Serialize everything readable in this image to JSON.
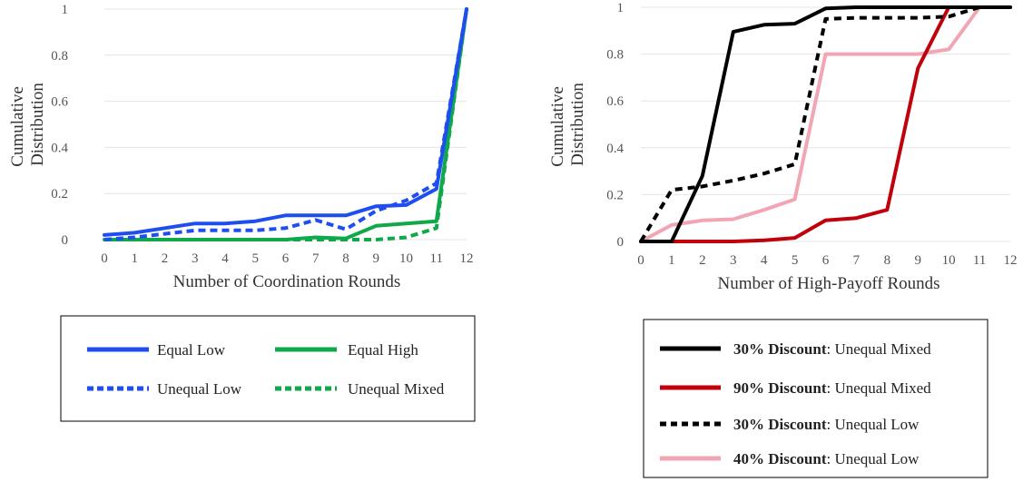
{
  "chart_data": [
    {
      "type": "line",
      "xlabel": "Number of Coordination Rounds",
      "ylabel": "Cumulative Distribution",
      "x": [
        0,
        1,
        2,
        3,
        4,
        5,
        6,
        7,
        8,
        9,
        10,
        11,
        12
      ],
      "xlim": [
        0,
        12
      ],
      "ylim": [
        0,
        1
      ],
      "yticks": [
        "0",
        "0.2",
        "0.4",
        "0.6",
        "0.8",
        "1"
      ],
      "grid": true,
      "legend_position": "bottom",
      "series": [
        {
          "name": "Equal Low",
          "color": "#1f4ef0",
          "dashed": false,
          "values": [
            0.02,
            0.03,
            0.05,
            0.07,
            0.07,
            0.08,
            0.105,
            0.105,
            0.105,
            0.145,
            0.15,
            0.22,
            1.0
          ]
        },
        {
          "name": "Equal High",
          "color": "#0fa84a",
          "dashed": false,
          "values": [
            0.0,
            0.0,
            0.0,
            0.0,
            0.0,
            0.0,
            0.0,
            0.01,
            0.005,
            0.06,
            0.07,
            0.08,
            1.0
          ]
        },
        {
          "name": "Unequal Low",
          "color": "#1f4ef0",
          "dashed": true,
          "values": [
            0.0,
            0.01,
            0.025,
            0.04,
            0.04,
            0.04,
            0.05,
            0.085,
            0.045,
            0.125,
            0.17,
            0.245,
            1.0
          ]
        },
        {
          "name": "Unequal Mixed",
          "color": "#0fa84a",
          "dashed": true,
          "values": [
            0.0,
            0.0,
            0.0,
            0.0,
            0.0,
            0.0,
            0.0,
            0.0,
            0.0,
            0.0,
            0.01,
            0.05,
            1.0
          ]
        }
      ]
    },
    {
      "type": "line",
      "xlabel": "Number of High-Payoff Rounds",
      "ylabel": "Cumulative Distribution",
      "x": [
        0,
        1,
        2,
        3,
        4,
        5,
        6,
        7,
        8,
        9,
        10,
        11,
        12
      ],
      "xlim": [
        0,
        12
      ],
      "ylim": [
        0,
        1
      ],
      "yticks": [
        "0",
        "0.2",
        "0.4",
        "0.6",
        "0.8",
        "1"
      ],
      "grid": true,
      "legend_position": "bottom",
      "series": [
        {
          "name_bold": "30% Discount",
          "name_rest": ": Unequal Mixed",
          "color": "#000000",
          "dashed": false,
          "values": [
            0.0,
            0.0,
            0.28,
            0.895,
            0.925,
            0.93,
            0.995,
            1.0,
            1.0,
            1.0,
            1.0,
            1.0,
            1.0
          ]
        },
        {
          "name_bold": "90% Discount",
          "name_rest": ": Unequal Mixed",
          "color": "#c0000a",
          "dashed": false,
          "values": [
            0.0,
            0.0,
            0.0,
            0.0,
            0.005,
            0.015,
            0.09,
            0.1,
            0.135,
            0.74,
            1.0,
            1.0,
            1.0
          ]
        },
        {
          "name_bold": "30% Discount",
          "name_rest": ": Unequal Low",
          "color": "#000000",
          "dashed": true,
          "values": [
            0.0,
            0.22,
            0.235,
            0.26,
            0.29,
            0.33,
            0.95,
            0.955,
            0.955,
            0.955,
            0.96,
            1.0,
            1.0
          ]
        },
        {
          "name_bold": "40% Discount",
          "name_rest": ": Unequal Low",
          "color": "#f2a6b4",
          "dashed": false,
          "values": [
            0.0,
            0.07,
            0.09,
            0.095,
            0.135,
            0.18,
            0.8,
            0.8,
            0.8,
            0.8,
            0.82,
            1.0,
            1.0
          ]
        }
      ]
    }
  ]
}
